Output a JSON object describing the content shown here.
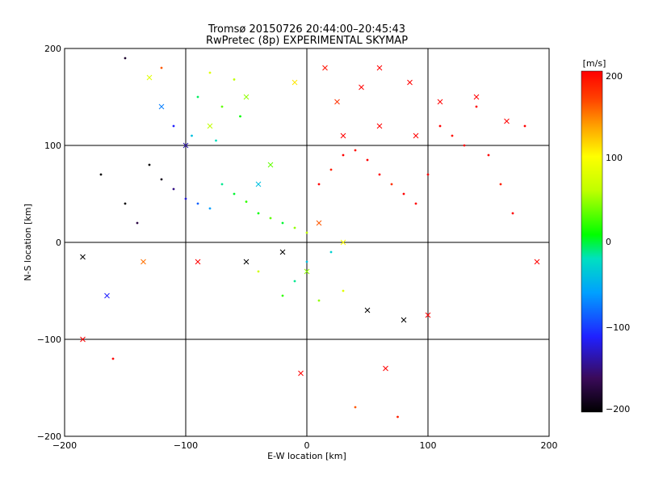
{
  "chart_data": {
    "type": "scatter",
    "title": "Tromsø 20150726 20:44:00–20:45:43",
    "subtitle": "RwPretec (8p) EXPERIMENTAL SKYMAP",
    "xlabel": "E-W location [km]",
    "ylabel": "N-S location [km]",
    "xlim": [
      -200,
      200
    ],
    "ylim": [
      -200,
      200
    ],
    "xticks": [
      -200,
      -100,
      0,
      100,
      200
    ],
    "yticks": [
      -200,
      -100,
      0,
      100,
      200
    ],
    "xtick_labels": [
      "−200",
      "−100",
      "0",
      "100",
      "200"
    ],
    "ytick_labels": [
      "−200",
      "−100",
      "0",
      "100",
      "200"
    ],
    "grid": true,
    "colorbar": {
      "label": "[m/s]",
      "range": [
        -200,
        200
      ],
      "ticks": [
        200,
        100,
        0,
        -100,
        -200
      ],
      "tick_labels": [
        "200",
        "100",
        "0",
        "−100",
        "−200"
      ],
      "colormap": [
        "#000000",
        "#3a0a5a",
        "#2020ff",
        "#00a0ff",
        "#00e0c0",
        "#00ff00",
        "#c0ff00",
        "#ffff00",
        "#ffa000",
        "#ff4000",
        "#ff0000"
      ]
    },
    "series": [
      {
        "marker": "dot",
        "points": [
          [
            -150,
            190,
            -180
          ],
          [
            -120,
            180,
            150
          ],
          [
            -80,
            175,
            60
          ],
          [
            -60,
            168,
            40
          ],
          [
            -90,
            150,
            -20
          ],
          [
            -70,
            140,
            20
          ],
          [
            -55,
            130,
            0
          ],
          [
            -110,
            120,
            -120
          ],
          [
            -95,
            110,
            -60
          ],
          [
            -75,
            105,
            -40
          ],
          [
            -130,
            80,
            -200
          ],
          [
            -120,
            65,
            -190
          ],
          [
            -110,
            55,
            -150
          ],
          [
            -100,
            45,
            -130
          ],
          [
            -90,
            40,
            -100
          ],
          [
            -80,
            35,
            -80
          ],
          [
            -70,
            60,
            -30
          ],
          [
            -60,
            50,
            -10
          ],
          [
            -50,
            42,
            10
          ],
          [
            -40,
            30,
            0
          ],
          [
            -30,
            25,
            20
          ],
          [
            -20,
            20,
            -10
          ],
          [
            -10,
            15,
            30
          ],
          [
            0,
            10,
            40
          ],
          [
            10,
            60,
            200
          ],
          [
            20,
            75,
            180
          ],
          [
            30,
            90,
            200
          ],
          [
            40,
            95,
            190
          ],
          [
            50,
            85,
            200
          ],
          [
            60,
            70,
            200
          ],
          [
            70,
            60,
            170
          ],
          [
            80,
            50,
            200
          ],
          [
            90,
            40,
            200
          ],
          [
            100,
            70,
            200
          ],
          [
            110,
            120,
            200
          ],
          [
            120,
            110,
            190
          ],
          [
            130,
            100,
            200
          ],
          [
            140,
            140,
            200
          ],
          [
            150,
            90,
            200
          ],
          [
            160,
            60,
            180
          ],
          [
            170,
            30,
            200
          ],
          [
            180,
            120,
            200
          ],
          [
            20,
            -10,
            -50
          ],
          [
            0,
            -20,
            -60
          ],
          [
            -10,
            -40,
            -30
          ],
          [
            -20,
            -55,
            10
          ],
          [
            10,
            -60,
            30
          ],
          [
            30,
            -50,
            60
          ],
          [
            -40,
            -30,
            50
          ],
          [
            -160,
            -120,
            200
          ],
          [
            40,
            -170,
            150
          ],
          [
            75,
            -180,
            180
          ],
          [
            -150,
            40,
            -200
          ],
          [
            -170,
            70,
            -200
          ],
          [
            -140,
            20,
            -170
          ]
        ]
      },
      {
        "marker": "x",
        "points": [
          [
            -185,
            -15,
            -200
          ],
          [
            -165,
            -55,
            -120
          ],
          [
            -135,
            -20,
            140
          ],
          [
            -130,
            170,
            60
          ],
          [
            -120,
            140,
            -90
          ],
          [
            -100,
            100,
            -140
          ],
          [
            -80,
            120,
            40
          ],
          [
            -50,
            150,
            30
          ],
          [
            -10,
            165,
            90
          ],
          [
            15,
            180,
            190
          ],
          [
            25,
            145,
            170
          ],
          [
            45,
            160,
            200
          ],
          [
            60,
            180,
            200
          ],
          [
            85,
            165,
            200
          ],
          [
            110,
            145,
            200
          ],
          [
            140,
            150,
            200
          ],
          [
            165,
            125,
            200
          ],
          [
            60,
            120,
            200
          ],
          [
            90,
            110,
            200
          ],
          [
            30,
            110,
            200
          ],
          [
            -40,
            60,
            -60
          ],
          [
            -30,
            80,
            20
          ],
          [
            10,
            20,
            150
          ],
          [
            30,
            0,
            80
          ],
          [
            -20,
            -10,
            -200
          ],
          [
            -50,
            -20,
            -200
          ],
          [
            0,
            -30,
            30
          ],
          [
            50,
            -70,
            -200
          ],
          [
            80,
            -80,
            -200
          ],
          [
            -185,
            -100,
            200
          ],
          [
            -5,
            -135,
            200
          ],
          [
            65,
            -130,
            200
          ],
          [
            100,
            -75,
            200
          ],
          [
            190,
            -20,
            200
          ],
          [
            -90,
            -20,
            200
          ]
        ]
      }
    ]
  }
}
